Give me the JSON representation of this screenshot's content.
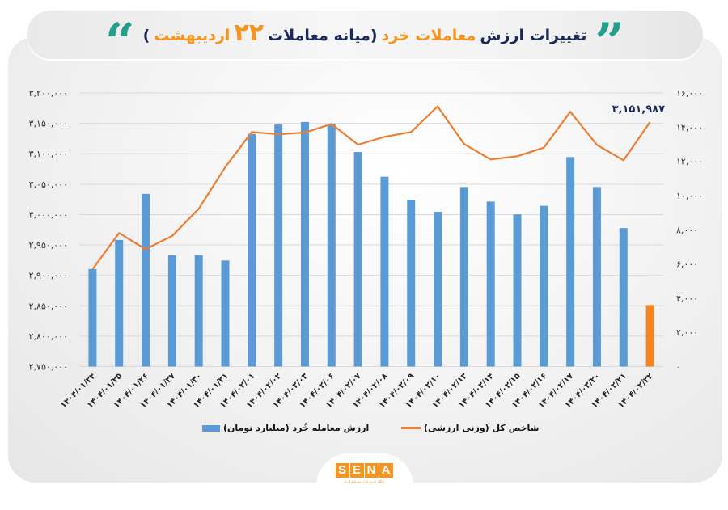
{
  "header": {
    "title_parts": {
      "part1": "تغییرات ارزش",
      "part2_orange": "معاملات خرد",
      "part3": "(میانه معاملات",
      "part4_number": "۲۲",
      "part5_orange": "اردیبهشت",
      "part6": ")"
    },
    "open_quote": "”",
    "close_quote": "“"
  },
  "colors": {
    "bar": "#5b9bd5",
    "bar_highlight": "#f7841f",
    "line": "#ed7d31",
    "title_navy": "#1b2a5a",
    "title_orange": "#f7941d",
    "quote_teal": "#23a08c",
    "data_label": "#1b2a5a"
  },
  "legend": {
    "line_label": "شاخص کل (وزنی ارزشی)",
    "bar_label": "ارزش معامله خُرد (میلیارد تومان)"
  },
  "logo": {
    "letters": [
      "S",
      "E",
      "N",
      "A"
    ],
    "subtitle": "پایگاه خبری بازار سرمایه ایران"
  },
  "chart_data": {
    "type": "bar+line",
    "title": "تغییرات ارزش معاملات خرد (میانه معاملات ۲۲ اردیبهشت)",
    "categories": [
      "۱۴۰۴/۰۱/۲۴",
      "۱۴۰۴/۰۱/۲۵",
      "۱۴۰۴/۰۱/۲۶",
      "۱۴۰۴/۰۱/۲۷",
      "۱۴۰۴/۰۱/۳۰",
      "۱۴۰۴/۰۱/۳۱",
      "۱۴۰۴/۰۲/۰۱",
      "۱۴۰۴/۰۲/۰۲",
      "۱۴۰۴/۰۲/۰۳",
      "۱۴۰۴/۰۲/۰۶",
      "۱۴۰۴/۰۲/۰۷",
      "۱۴۰۴/۰۲/۰۸",
      "۱۴۰۴/۰۲/۰۹",
      "۱۴۰۴/۰۲/۱۰",
      "۱۴۰۴/۰۲/۱۳",
      "۱۴۰۴/۰۲/۱۴",
      "۱۴۰۴/۰۲/۱۵",
      "۱۴۰۴/۰۲/۱۶",
      "۱۴۰۴/۰۲/۱۷",
      "۱۴۰۴/۰۲/۲۰",
      "۱۴۰۴/۰۲/۲۱",
      "۱۴۰۴/۰۲/۲۲"
    ],
    "series": [
      {
        "name": "ارزش معامله خُرد (میلیارد تومان)",
        "type": "bar",
        "axis": "right",
        "values": [
          5700,
          7400,
          10100,
          6500,
          6500,
          6200,
          13600,
          14150,
          14300,
          14200,
          12550,
          11100,
          9750,
          9050,
          10500,
          9650,
          8900,
          9400,
          12250,
          10500,
          8100,
          3600
        ],
        "highlight_index": 21
      },
      {
        "name": "شاخص کل (وزنی ارزشی)",
        "type": "line",
        "axis": "left",
        "values": [
          2910000,
          2969600,
          2943000,
          2965000,
          3009500,
          3078000,
          3135800,
          3132000,
          3134900,
          3149000,
          3114900,
          3127800,
          3135800,
          3177800,
          3115800,
          3090600,
          3095900,
          3110000,
          3169000,
          3114500,
          3089300,
          3151987
        ]
      }
    ],
    "left_axis": {
      "range": [
        2750000,
        3200000
      ],
      "ticks": [
        "۲,۷۵۰,۰۰۰",
        "۲,۸۰۰,۰۰۰",
        "۲,۸۵۰,۰۰۰",
        "۲,۹۰۰,۰۰۰",
        "۲,۹۵۰,۰۰۰",
        "۳,۰۰۰,۰۰۰",
        "۳,۰۵۰,۰۰۰",
        "۳,۱۰۰,۰۰۰",
        "۳,۱۵۰,۰۰۰",
        "۳,۲۰۰,۰۰۰"
      ]
    },
    "right_axis": {
      "range": [
        0,
        16000
      ],
      "ticks": [
        "۰",
        "۲,۰۰۰",
        "۴,۰۰۰",
        "۶,۰۰۰",
        "۸,۰۰۰",
        "۱۰,۰۰۰",
        "۱۲,۰۰۰",
        "۱۴,۰۰۰",
        "۱۶,۰۰۰"
      ]
    },
    "annotations": [
      {
        "text": "۳,۱۵۱,۹۸۷",
        "target": "line last point"
      }
    ],
    "grid": true,
    "legend_position": "bottom"
  }
}
